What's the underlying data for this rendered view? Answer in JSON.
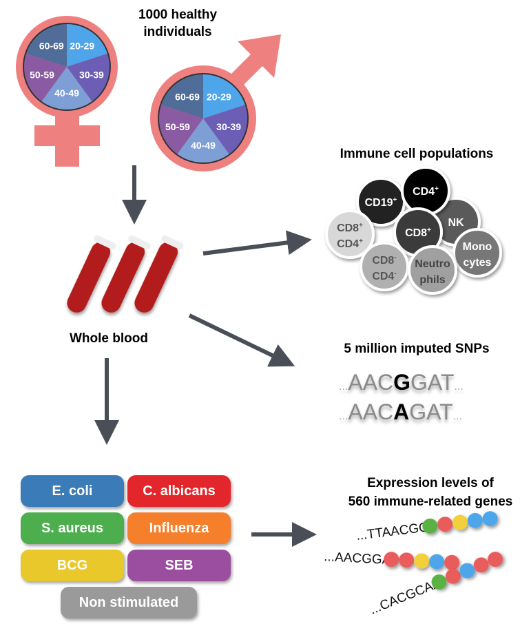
{
  "title": "1000 healthy individuals",
  "title_lines": [
    "1000 healthy",
    "individuals"
  ],
  "age_groups": [
    "20-29",
    "30-39",
    "40-49",
    "50-59",
    "60-69"
  ],
  "age_colors": [
    "#4ea5ea",
    "#6c5db5",
    "#7d9fd6",
    "#8a5ba3",
    "#4f6d98"
  ],
  "symbol_color": "#ef8080",
  "whole_blood": "Whole blood",
  "immune": {
    "title": "Immune cell populations",
    "cells": [
      {
        "l1": "CD8",
        "s1": "+",
        "l2": "CD4",
        "s2": "+",
        "fill": "#d8d8d8",
        "text": "#555555"
      },
      {
        "l1": "CD19",
        "s1": "+",
        "fill": "#222222",
        "text": "#ffffff"
      },
      {
        "l1": "CD4",
        "s1": "+",
        "fill": "#000000",
        "text": "#ffffff"
      },
      {
        "l1": "NK",
        "fill": "#5a5a5a",
        "text": "#ffffff"
      },
      {
        "l1": "CD8",
        "s1": "+",
        "fill": "#3a3a3a",
        "text": "#ffffff"
      },
      {
        "l1": "CD8",
        "s1": "-",
        "l2": "CD4",
        "s2": "-",
        "fill": "#b0b0b0",
        "text": "#555555"
      },
      {
        "l1": "Neutro",
        "l2": "phils",
        "fill": "#a0a0a0",
        "text": "#444444"
      },
      {
        "l1": "Mono",
        "l2": "cytes",
        "fill": "#777777",
        "text": "#ffffff"
      }
    ]
  },
  "snps": {
    "title": "5 million imputed SNPs",
    "seq1": {
      "pre": "AAC",
      "var": "G",
      "post": "GAT"
    },
    "seq2": {
      "pre": "AAC",
      "var": "A",
      "post": "GAT"
    },
    "dots": "..."
  },
  "expression": {
    "title_lines": [
      "Expression levels of",
      "560 immune-related genes"
    ],
    "rows": [
      {
        "seq": "...TTAACGG",
        "beads": [
          "#5cb144",
          "#e85c5c",
          "#f2d03b",
          "#4ea5ea",
          "#4ea5ea"
        ]
      },
      {
        "seq": "...AACGGAT",
        "beads": [
          "#e85c5c",
          "#e85c5c",
          "#f2d03b",
          "#4ea5ea",
          "#e85c5c"
        ]
      },
      {
        "seq": "...CACGCAA",
        "beads": [
          "#5cb144",
          "#e85c5c",
          "#4ea5ea",
          "#e85c5c",
          "#e85c5c"
        ]
      }
    ]
  },
  "stimuli": [
    {
      "label": "E. coli",
      "color": "#3a7bb8"
    },
    {
      "label": "C. albicans",
      "color": "#e3262b"
    },
    {
      "label": "S. aureus",
      "color": "#4cae4c"
    },
    {
      "label": "Influenza",
      "color": "#f57f2b"
    },
    {
      "label": "BCG",
      "color": "#e9c82b"
    },
    {
      "label": "SEB",
      "color": "#9b4ea0"
    },
    {
      "label": "Non stimulated",
      "color": "#9a9a9a"
    }
  ]
}
